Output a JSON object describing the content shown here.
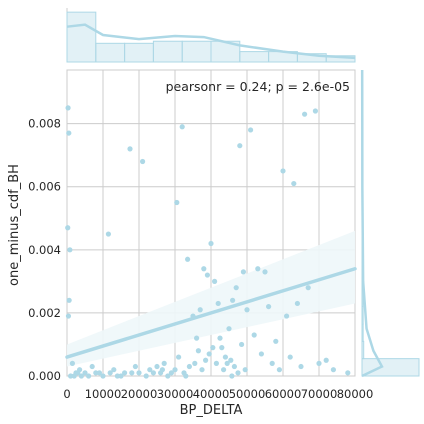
{
  "chart_data": {
    "type": "scatter",
    "xlabel": "BP_DELTA",
    "ylabel": "one_minus_cdf_BH",
    "annotation": "pearsonr = 0.24; p = 2.6e-05",
    "xlim": [
      0,
      80000
    ],
    "ylim": [
      0,
      0.0097
    ],
    "x_ticks": [
      0,
      10000,
      20000,
      30000,
      40000,
      50000,
      60000,
      70000,
      80000
    ],
    "x_tick_labels": [
      "0",
      "10000",
      "20000",
      "30000",
      "40000",
      "50000",
      "60000",
      "70000",
      "80000"
    ],
    "y_ticks": [
      0,
      0.002,
      0.004,
      0.006,
      0.008
    ],
    "y_tick_labels": [
      "0.000",
      "0.002",
      "0.004",
      "0.006",
      "0.008"
    ],
    "grid": true,
    "colors": {
      "points": "#add8e6",
      "regression": "#add8e6",
      "ci_band": "#eef7fa",
      "grid": "#cccccc",
      "axis_text": "#262626"
    },
    "points": [
      [
        300,
        0.0085
      ],
      [
        500,
        0.0077
      ],
      [
        200,
        0.0047
      ],
      [
        800,
        0.004
      ],
      [
        600,
        0.0024
      ],
      [
        400,
        0.0019
      ],
      [
        1500,
        0.0004
      ],
      [
        2500,
        0.0001
      ],
      [
        3500,
        0.0002
      ],
      [
        5000,
        0.0001
      ],
      [
        7000,
        0.0003
      ],
      [
        11500,
        0.0045
      ],
      [
        17500,
        0.0072
      ],
      [
        21000,
        0.0068
      ],
      [
        25000,
        0.0003
      ],
      [
        26000,
        0.0001
      ],
      [
        29000,
        0.0001
      ],
      [
        30500,
        0.0055
      ],
      [
        32000,
        0.0079
      ],
      [
        33500,
        0.0037
      ],
      [
        35000,
        0.0019
      ],
      [
        36000,
        0.0012
      ],
      [
        37000,
        0.0021
      ],
      [
        38000,
        0.0034
      ],
      [
        39000,
        0.0032
      ],
      [
        40000,
        0.0042
      ],
      [
        41000,
        0.003
      ],
      [
        42000,
        0.0023
      ],
      [
        43000,
        0.0009
      ],
      [
        44000,
        0.0006
      ],
      [
        45000,
        0.0015
      ],
      [
        46000,
        0.0024
      ],
      [
        47000,
        0.0028
      ],
      [
        48000,
        0.0073
      ],
      [
        49000,
        0.0033
      ],
      [
        50000,
        0.0021
      ],
      [
        51000,
        0.0078
      ],
      [
        53000,
        0.0034
      ],
      [
        55000,
        0.0033
      ],
      [
        56000,
        0.0022
      ],
      [
        58000,
        0.0011
      ],
      [
        60000,
        0.0065
      ],
      [
        61000,
        0.0019
      ],
      [
        63000,
        0.0061
      ],
      [
        64000,
        0.0023
      ],
      [
        66000,
        0.0083
      ],
      [
        67000,
        0.0028
      ],
      [
        69000,
        0.0084
      ],
      [
        72000,
        0.0005
      ],
      [
        74000,
        0.0002
      ],
      [
        78000,
        0.0001
      ],
      [
        9000,
        0.0001
      ],
      [
        13000,
        0.0002
      ],
      [
        16000,
        0.0001
      ],
      [
        19000,
        0.0003
      ],
      [
        23000,
        0.0002
      ],
      [
        27000,
        0.0004
      ],
      [
        31000,
        0.0006
      ],
      [
        34000,
        0.0003
      ],
      [
        36500,
        0.0008
      ],
      [
        38500,
        0.0005
      ],
      [
        40500,
        0.0009
      ],
      [
        42500,
        0.0012
      ],
      [
        44500,
        0.0004
      ],
      [
        46500,
        0.0003
      ],
      [
        48500,
        0.001
      ],
      [
        52000,
        0.0013
      ],
      [
        54000,
        0.0007
      ],
      [
        57000,
        0.0004
      ],
      [
        59000,
        0.0002
      ],
      [
        62000,
        0.0006
      ],
      [
        65000,
        0.0003
      ],
      [
        70000,
        0.0004
      ],
      [
        10000,
        0.0
      ],
      [
        14000,
        0.0
      ],
      [
        18000,
        0.0001
      ],
      [
        22000,
        0.0
      ],
      [
        24000,
        0.0001
      ],
      [
        28000,
        0.0
      ],
      [
        30000,
        0.0002
      ],
      [
        32500,
        0.0001
      ],
      [
        35500,
        0.0004
      ],
      [
        37500,
        0.0002
      ],
      [
        39500,
        0.0007
      ],
      [
        41500,
        0.0004
      ],
      [
        43500,
        0.0002
      ],
      [
        45500,
        0.0005
      ],
      [
        47500,
        0.0001
      ],
      [
        49500,
        0.0002
      ],
      [
        1000,
        0.0
      ],
      [
        2000,
        0.0
      ],
      [
        3000,
        0.0001
      ],
      [
        4000,
        0.0
      ],
      [
        6000,
        0.0
      ],
      [
        8000,
        0.0001
      ],
      [
        12000,
        0.0001
      ],
      [
        15000,
        0.0
      ],
      [
        20000,
        0.0001
      ],
      [
        26500,
        0.0002
      ],
      [
        33000,
        0.0
      ],
      [
        45800,
        0.0
      ]
    ],
    "regression": {
      "x": [
        0,
        80000
      ],
      "y": [
        0.0006,
        0.0034
      ],
      "ci_lower": [
        0.0003,
        0.0023
      ],
      "ci_upper": [
        0.001,
        0.0046
      ]
    },
    "top_histogram": {
      "bin_edges": [
        0,
        8000,
        16000,
        24000,
        32000,
        40000,
        48000,
        56000,
        64000,
        72000,
        80000
      ],
      "counts": [
        24,
        9,
        9,
        10,
        10,
        10,
        5,
        5,
        4,
        3
      ],
      "kde": [
        [
          0,
          17
        ],
        [
          5000,
          18
        ],
        [
          10000,
          13
        ],
        [
          20000,
          11
        ],
        [
          30000,
          12.5
        ],
        [
          38000,
          12
        ],
        [
          48000,
          8
        ],
        [
          60000,
          5
        ],
        [
          70000,
          3
        ],
        [
          80000,
          2
        ]
      ]
    },
    "right_histogram": {
      "bin_edges": [
        0,
        0.00055,
        0.0011,
        0.00165,
        0.0022,
        0.00275,
        0.0033,
        0.00385,
        0.0044,
        0.00495,
        0.0055,
        0.00605,
        0.0066,
        0.00715,
        0.0077,
        0.00825,
        0.0088,
        0.00935
      ],
      "counts": [
        100,
        3,
        2,
        2,
        2,
        2,
        2,
        2,
        1,
        1,
        1,
        1,
        1,
        1,
        1,
        1,
        1
      ],
      "kde": [
        [
          0,
          0.0
        ],
        [
          0.0003,
          35
        ],
        [
          0.0008,
          20
        ],
        [
          0.0015,
          8
        ],
        [
          0.003,
          2
        ],
        [
          0.006,
          0.6
        ],
        [
          0.008,
          0.5
        ],
        [
          0.0097,
          0.3
        ]
      ]
    }
  }
}
